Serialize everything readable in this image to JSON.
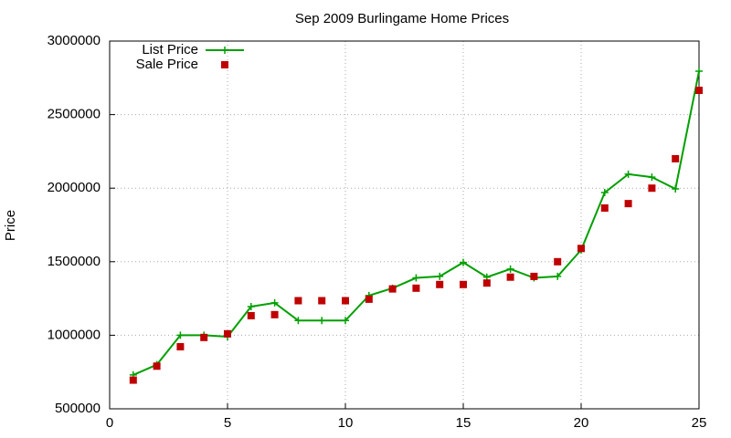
{
  "chart_data": {
    "type": "line",
    "title": "Sep 2009 Burlingame Home Prices",
    "y_label": "Price",
    "x": [
      1,
      2,
      3,
      4,
      5,
      6,
      7,
      8,
      9,
      10,
      11,
      12,
      13,
      14,
      15,
      16,
      17,
      18,
      19,
      20,
      21,
      22,
      23,
      24,
      25
    ],
    "series": [
      {
        "name": "List Price",
        "color": "#00a000",
        "style": "linespoints",
        "values": [
          730000,
          800000,
          1000000,
          1000000,
          990000,
          1195000,
          1220000,
          1100000,
          1100000,
          1100000,
          1270000,
          1320000,
          1390000,
          1400000,
          1495000,
          1395000,
          1450000,
          1390000,
          1400000,
          1580000,
          1970000,
          2095000,
          2075000,
          1995000,
          2795000
        ]
      },
      {
        "name": "Sale Price",
        "color": "#c00000",
        "style": "points",
        "values": [
          695000,
          790000,
          922000,
          985000,
          1010000,
          1133000,
          1140000,
          1235000,
          1235000,
          1235000,
          1245000,
          1315000,
          1320000,
          1345000,
          1345000,
          1355000,
          1395000,
          1400000,
          1500000,
          1590000,
          1865000,
          1895000,
          2000000,
          2200000,
          2665000
        ]
      }
    ],
    "xlim": [
      0,
      25
    ],
    "xticks": [
      0,
      5,
      10,
      15,
      20,
      25
    ],
    "ylim": [
      500000,
      3000000
    ],
    "yticks": [
      500000,
      1000000,
      1500000,
      2000000,
      2500000,
      3000000
    ],
    "grid": true,
    "legend": "top-left"
  }
}
